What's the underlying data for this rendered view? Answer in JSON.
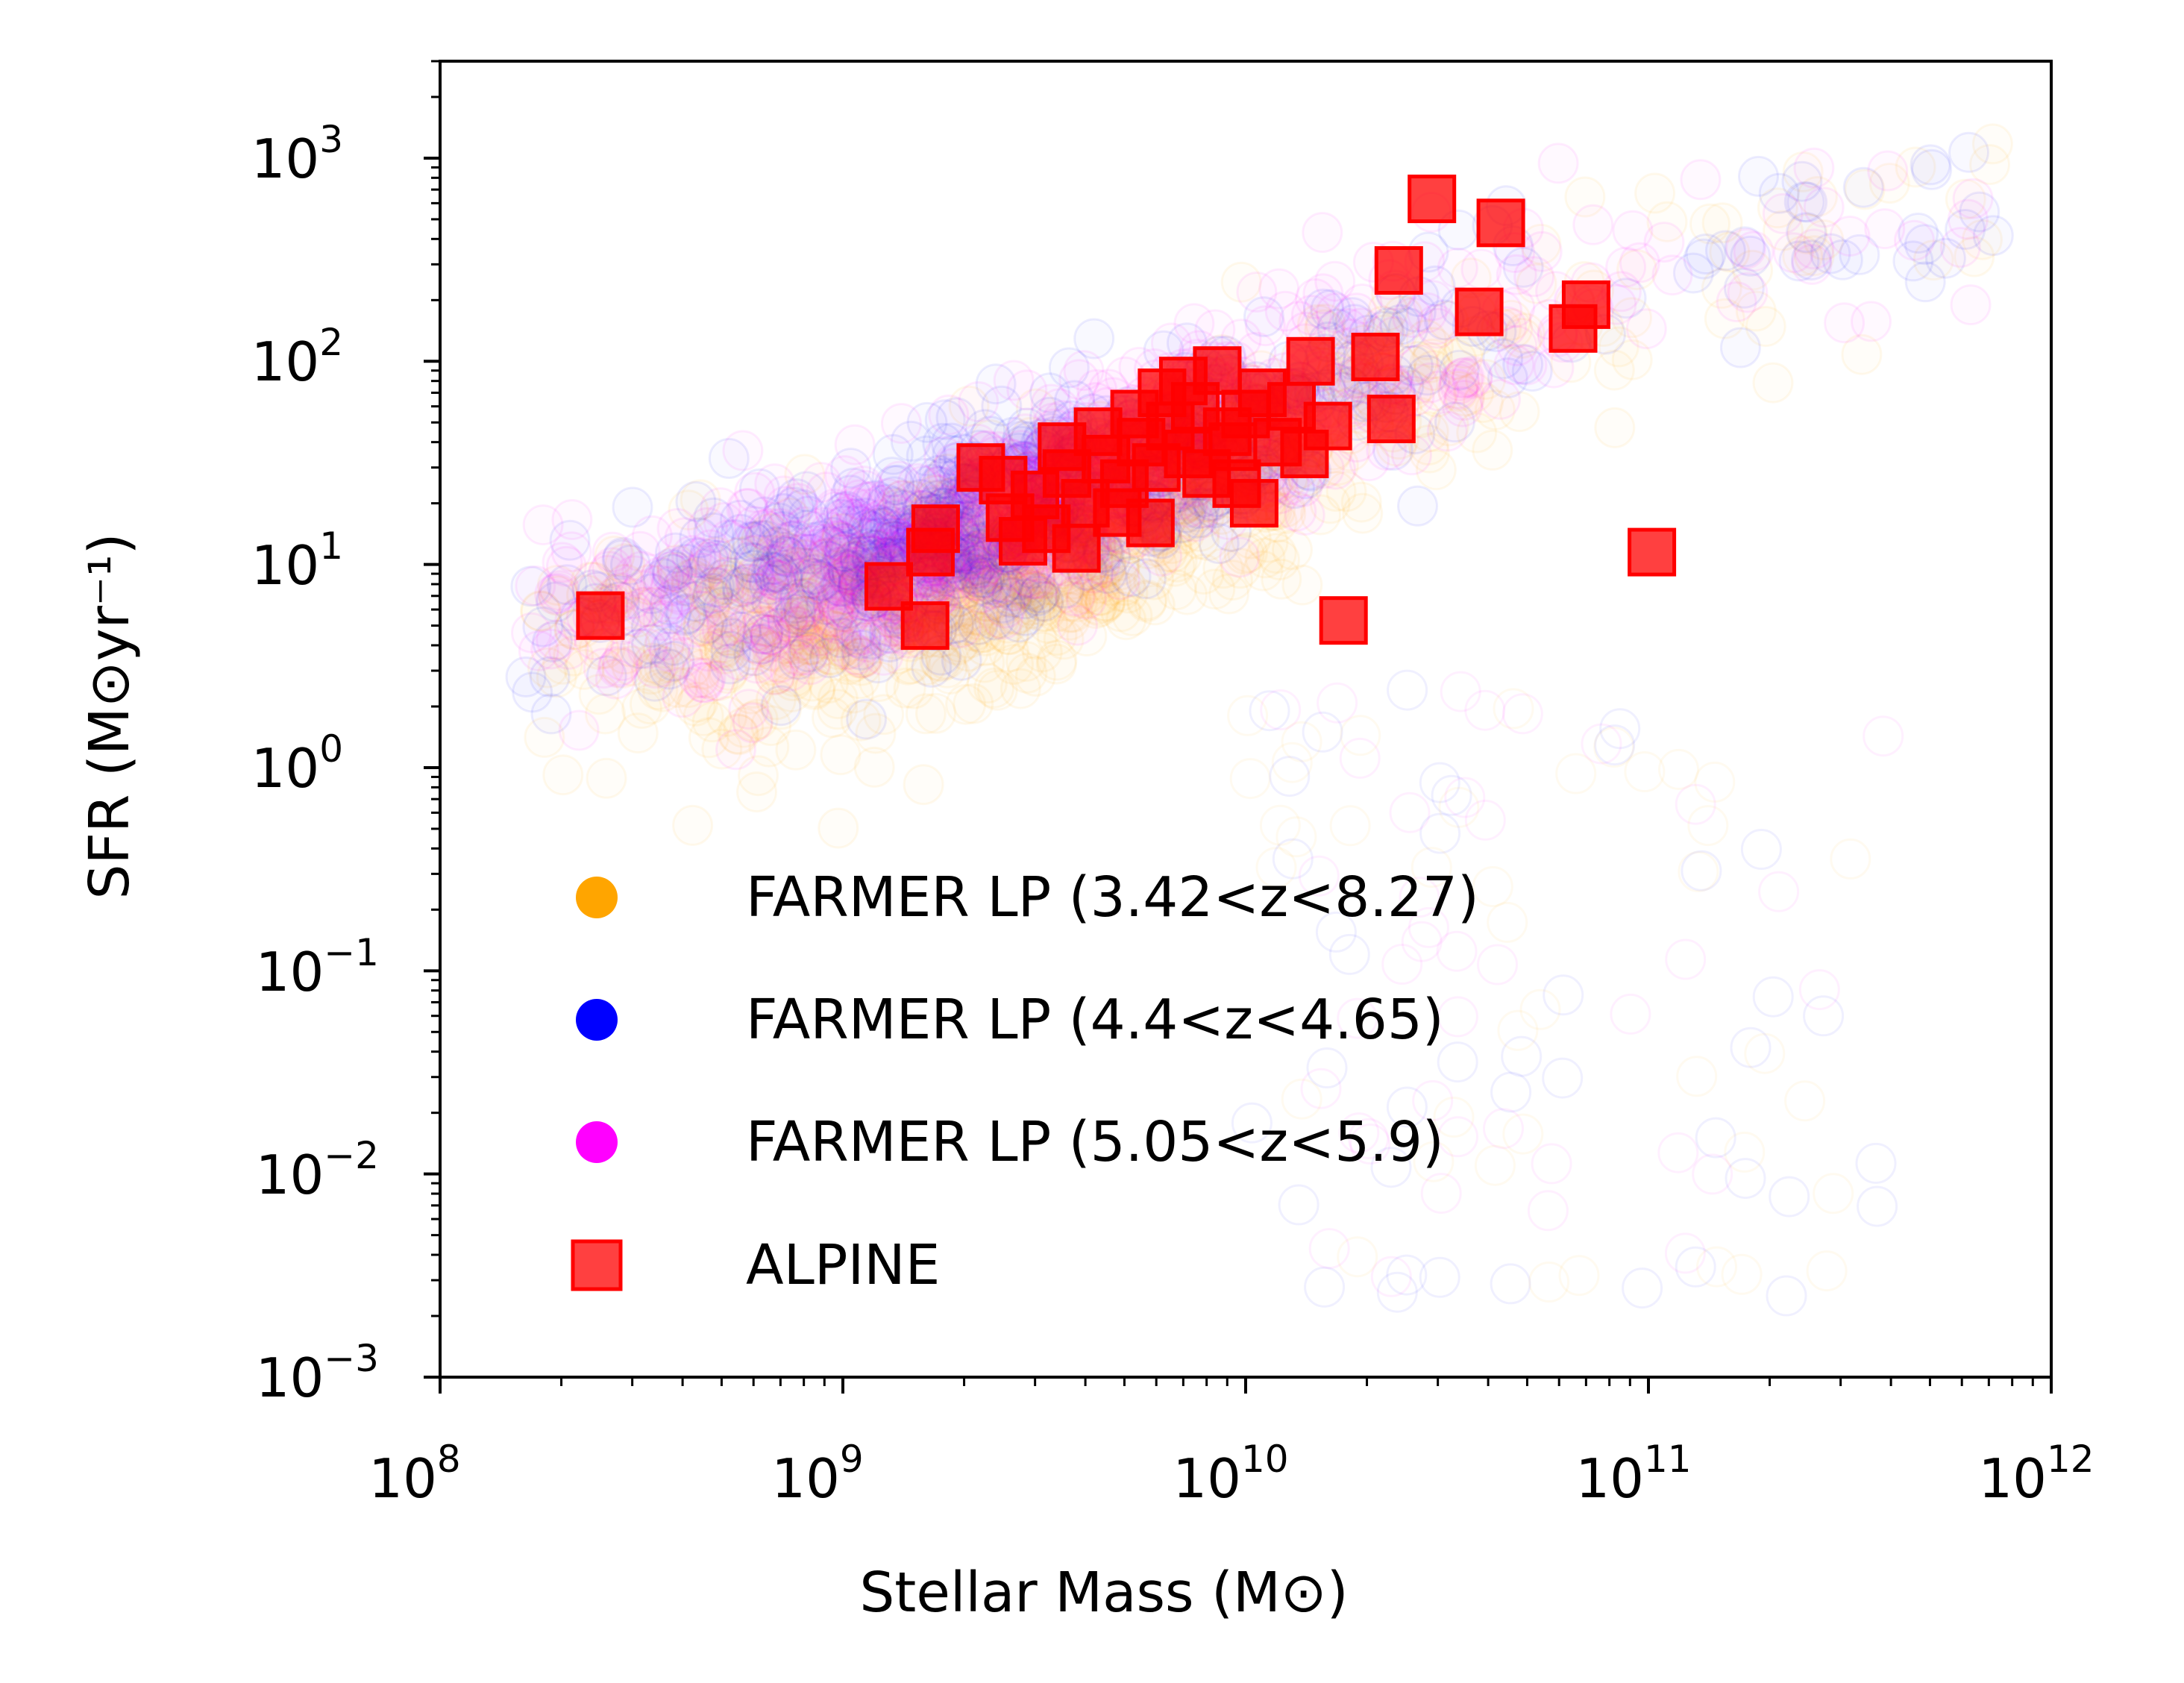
{
  "chart_data": {
    "type": "scatter",
    "title": "",
    "xlabel": "Stellar Mass (M⊙)",
    "ylabel": "SFR (M⊙yr⁻¹)",
    "xscale": "log",
    "yscale": "log",
    "xlim": [
      100000000.0,
      1000000000000.0
    ],
    "ylim": [
      0.001,
      3000
    ],
    "x_ticks": [
      {
        "mantissa": "10",
        "exp": "8"
      },
      {
        "mantissa": "10",
        "exp": "9"
      },
      {
        "mantissa": "10",
        "exp": "10"
      },
      {
        "mantissa": "10",
        "exp": "11"
      },
      {
        "mantissa": "10",
        "exp": "12"
      }
    ],
    "y_ticks": [
      {
        "mantissa": "10",
        "exp": "−3"
      },
      {
        "mantissa": "10",
        "exp": "−2"
      },
      {
        "mantissa": "10",
        "exp": "−1"
      },
      {
        "mantissa": "10",
        "exp": "0"
      },
      {
        "mantissa": "10",
        "exp": "1"
      },
      {
        "mantissa": "10",
        "exp": "2"
      },
      {
        "mantissa": "10",
        "exp": "3"
      }
    ],
    "legend_position": "lower-left",
    "series": [
      {
        "name": "FARMER LP (3.42<z<8.27)",
        "color": "#ffa500",
        "marker": "circle",
        "description_ridge_log": [
          [
            8.2,
            0.55
          ],
          [
            8.6,
            0.62
          ],
          [
            9.0,
            0.72
          ],
          [
            9.5,
            1.0
          ],
          [
            10.0,
            1.45
          ],
          [
            10.5,
            1.95
          ],
          [
            11.0,
            2.35
          ],
          [
            11.5,
            2.62
          ],
          [
            11.9,
            2.78
          ]
        ],
        "spread_dex": 0.45
      },
      {
        "name": "FARMER LP (4.4<z<4.65)",
        "color": "#0000ff",
        "marker": "circle",
        "description_ridge_log": [
          [
            8.2,
            0.65
          ],
          [
            8.6,
            0.85
          ],
          [
            9.0,
            1.0
          ],
          [
            9.5,
            1.3
          ],
          [
            10.0,
            1.7
          ],
          [
            10.5,
            2.1
          ],
          [
            11.0,
            2.4
          ],
          [
            11.5,
            2.62
          ],
          [
            11.9,
            2.8
          ]
        ],
        "spread_dex": 0.4
      },
      {
        "name": "FARMER LP (5.05<z<5.9)",
        "color": "#ff00ff",
        "marker": "circle",
        "description_ridge_log": [
          [
            8.3,
            0.7
          ],
          [
            8.7,
            0.85
          ],
          [
            9.0,
            1.0
          ],
          [
            9.5,
            1.3
          ],
          [
            10.0,
            1.75
          ],
          [
            10.5,
            2.1
          ],
          [
            11.0,
            2.4
          ],
          [
            11.5,
            2.6
          ],
          [
            11.9,
            2.75
          ]
        ],
        "spread_dex": 0.42
      },
      {
        "name": "ALPINE",
        "color": "#ff0000",
        "marker": "square",
        "points": [
          [
            250000000.0,
            5.6
          ],
          [
            1300000000.0,
            7.8
          ],
          [
            1600000000.0,
            5.0
          ],
          [
            1650000000.0,
            11.5
          ],
          [
            1700000000.0,
            15.0
          ],
          [
            2200000000.0,
            30
          ],
          [
            2500000000.0,
            26
          ],
          [
            2600000000.0,
            17
          ],
          [
            2800000000.0,
            13
          ],
          [
            3000000000.0,
            22
          ],
          [
            3200000000.0,
            15
          ],
          [
            3500000000.0,
            38
          ],
          [
            3600000000.0,
            28
          ],
          [
            3800000000.0,
            12
          ],
          [
            4000000000.0,
            20
          ],
          [
            4300000000.0,
            45
          ],
          [
            4500000000.0,
            33
          ],
          [
            4800000000.0,
            18
          ],
          [
            5000000000.0,
            25
          ],
          [
            5300000000.0,
            55
          ],
          [
            5500000000.0,
            40
          ],
          [
            5800000000.0,
            16
          ],
          [
            6000000000.0,
            30
          ],
          [
            6200000000.0,
            70
          ],
          [
            6500000000.0,
            48
          ],
          [
            7000000000.0,
            80
          ],
          [
            7200000000.0,
            35
          ],
          [
            7500000000.0,
            60
          ],
          [
            8000000000.0,
            28
          ],
          [
            8500000000.0,
            90
          ],
          [
            9000000000.0,
            45
          ],
          [
            9300000000.0,
            38
          ],
          [
            9500000000.0,
            25
          ],
          [
            10000000000.0,
            55
          ],
          [
            10500000000.0,
            20
          ],
          [
            11000000000.0,
            70
          ],
          [
            12000000000.0,
            40
          ],
          [
            13000000000.0,
            60
          ],
          [
            14000000000.0,
            35
          ],
          [
            14500000000.0,
            100
          ],
          [
            16000000000.0,
            48
          ],
          [
            17500000000.0,
            5.3
          ],
          [
            21000000000.0,
            105
          ],
          [
            23000000000.0,
            52
          ],
          [
            24000000000.0,
            280
          ],
          [
            29000000000.0,
            630
          ],
          [
            38000000000.0,
            175
          ],
          [
            43000000000.0,
            480
          ],
          [
            65000000000.0,
            145
          ],
          [
            70000000000.0,
            190
          ],
          [
            102000000000.0,
            11.5
          ]
        ]
      }
    ],
    "legend": [
      {
        "label": "FARMER LP (3.42<z<8.27)",
        "color": "#ffa500",
        "marker": "circle"
      },
      {
        "label": "FARMER LP (4.4<z<4.65)",
        "color": "#0000ff",
        "marker": "circle"
      },
      {
        "label": "FARMER LP (5.05<z<5.9)",
        "color": "#ff00ff",
        "marker": "circle"
      },
      {
        "label": "ALPINE",
        "color": "#ff0000",
        "marker": "square"
      }
    ]
  }
}
